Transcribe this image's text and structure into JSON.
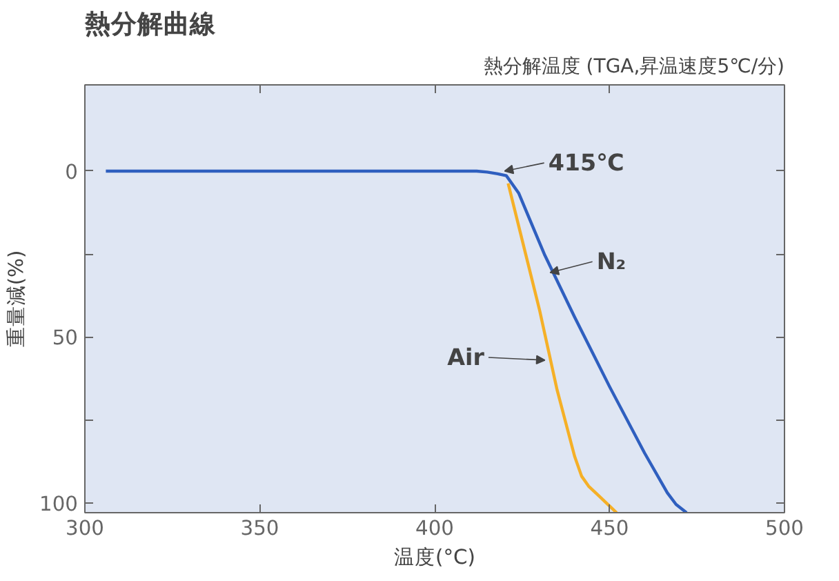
{
  "chart_data": {
    "type": "line",
    "title": "熱分解曲線",
    "subtitle": "熱分解温度 (TGA,昇温速度5℃/分)",
    "xlabel": "温度(°C)",
    "ylabel": "重量減(%)",
    "xlim": [
      300,
      500
    ],
    "xticks": [
      300,
      350,
      400,
      450,
      500
    ],
    "ylim": [
      103,
      -26
    ],
    "yticks": [
      0,
      {
        "value": 25,
        "label": null
      },
      50,
      {
        "value": 75,
        "label": null
      },
      100
    ],
    "grid": false,
    "marker": "none",
    "line_style": "solid",
    "series": [
      {
        "color": "#f5b027",
        "x": [
          421,
          426,
          430,
          435,
          440,
          442,
          444,
          447,
          450,
          452
        ],
        "values": [
          3.7,
          25,
          42,
          66,
          86,
          92,
          95,
          98,
          101,
          103
        ]
      },
      {
        "color": "#2f5fbf",
        "x": [
          306,
          340,
          380,
          412,
          415,
          418,
          420.5,
          424,
          431.5,
          440,
          450,
          460,
          466.5,
          469,
          472
        ],
        "values": [
          0,
          0,
          0,
          0,
          0.3,
          0.8,
          1.4,
          6.6,
          25.4,
          44,
          65,
          85,
          97,
          100.5,
          103
        ]
      }
    ],
    "annotations": [
      {
        "text": "415℃",
        "x": 420,
        "y": 0
      },
      {
        "text": "N₂",
        "x": 433,
        "y": 30.6
      },
      {
        "text": "Air",
        "x": 431.5,
        "y": 57
      }
    ]
  }
}
